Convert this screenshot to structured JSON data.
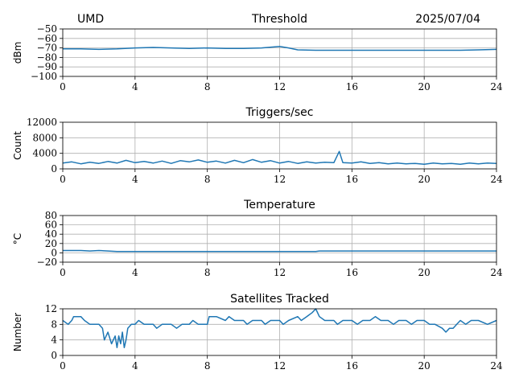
{
  "header": {
    "station": "UMD",
    "date": "2025/07/04"
  },
  "colors": {
    "series": "#1f77b4"
  },
  "chart_data": [
    {
      "type": "line",
      "title": "Threshold",
      "ylabel": "dBm",
      "xlim": [
        0,
        24
      ],
      "xticks": [
        0,
        4,
        8,
        12,
        16,
        20,
        24
      ],
      "ylim": [
        -100,
        -50
      ],
      "yticks": [
        -100,
        -90,
        -80,
        -70,
        -60,
        -50
      ],
      "ytick_labels": [
        "−100",
        "−90",
        "−80",
        "−70",
        "−60",
        "−50"
      ],
      "grid": true,
      "series": [
        {
          "values": [
            [
              0,
              -71
            ],
            [
              1,
              -71
            ],
            [
              2,
              -71.5
            ],
            [
              3,
              -71
            ],
            [
              4,
              -70
            ],
            [
              5,
              -69.5
            ],
            [
              6,
              -70
            ],
            [
              7,
              -70.5
            ],
            [
              8,
              -70
            ],
            [
              9,
              -70.5
            ],
            [
              10,
              -70.5
            ],
            [
              11,
              -70
            ],
            [
              12,
              -68.5
            ],
            [
              12.5,
              -70
            ],
            [
              13,
              -72
            ],
            [
              14,
              -72.5
            ],
            [
              16,
              -72.5
            ],
            [
              18,
              -72.5
            ],
            [
              20,
              -72.5
            ],
            [
              22,
              -72.5
            ],
            [
              23,
              -72
            ],
            [
              24,
              -71.5
            ]
          ]
        }
      ]
    },
    {
      "type": "line",
      "title": "Triggers/sec",
      "ylabel": "Count",
      "xlim": [
        0,
        24
      ],
      "xticks": [
        0,
        4,
        8,
        12,
        16,
        20,
        24
      ],
      "ylim": [
        0,
        12000
      ],
      "yticks": [
        0,
        4000,
        8000,
        12000
      ],
      "ytick_labels": [
        "0",
        "4000",
        "8000",
        "12000"
      ],
      "grid": true,
      "series": [
        {
          "values": [
            [
              0,
              1500
            ],
            [
              0.5,
              1800
            ],
            [
              1,
              1300
            ],
            [
              1.5,
              1700
            ],
            [
              2,
              1400
            ],
            [
              2.5,
              1900
            ],
            [
              3,
              1500
            ],
            [
              3.5,
              2200
            ],
            [
              4,
              1600
            ],
            [
              4.5,
              1900
            ],
            [
              5,
              1500
            ],
            [
              5.5,
              2000
            ],
            [
              6,
              1400
            ],
            [
              6.5,
              2100
            ],
            [
              7,
              1800
            ],
            [
              7.5,
              2300
            ],
            [
              8,
              1700
            ],
            [
              8.5,
              2000
            ],
            [
              9,
              1500
            ],
            [
              9.5,
              2200
            ],
            [
              10,
              1600
            ],
            [
              10.5,
              2400
            ],
            [
              11,
              1700
            ],
            [
              11.5,
              2100
            ],
            [
              12,
              1500
            ],
            [
              12.5,
              1900
            ],
            [
              13,
              1400
            ],
            [
              13.5,
              1800
            ],
            [
              14,
              1500
            ],
            [
              14.5,
              1700
            ],
            [
              15,
              1600
            ],
            [
              15.3,
              4500
            ],
            [
              15.5,
              1600
            ],
            [
              16,
              1500
            ],
            [
              16.5,
              1800
            ],
            [
              17,
              1400
            ],
            [
              17.5,
              1600
            ],
            [
              18,
              1300
            ],
            [
              18.5,
              1500
            ],
            [
              19,
              1300
            ],
            [
              19.5,
              1400
            ],
            [
              20,
              1200
            ],
            [
              20.5,
              1500
            ],
            [
              21,
              1300
            ],
            [
              21.5,
              1400
            ],
            [
              22,
              1200
            ],
            [
              22.5,
              1500
            ],
            [
              23,
              1300
            ],
            [
              23.5,
              1500
            ],
            [
              24,
              1400
            ]
          ]
        }
      ]
    },
    {
      "type": "line",
      "title": "Temperature",
      "ylabel": "°C",
      "xlim": [
        0,
        24
      ],
      "xticks": [
        0,
        4,
        8,
        12,
        16,
        20,
        24
      ],
      "ylim": [
        -20,
        80
      ],
      "yticks": [
        -20,
        0,
        20,
        40,
        60,
        80
      ],
      "ytick_labels": [
        "−20",
        "0",
        "20",
        "40",
        "60",
        "80"
      ],
      "grid": true,
      "series": [
        {
          "values": [
            [
              0,
              5
            ],
            [
              1,
              5
            ],
            [
              1.5,
              4
            ],
            [
              2,
              5
            ],
            [
              2.5,
              4
            ],
            [
              3,
              3
            ],
            [
              6,
              3
            ],
            [
              9,
              3
            ],
            [
              12,
              3
            ],
            [
              14,
              3
            ],
            [
              14.2,
              4
            ],
            [
              16,
              4
            ],
            [
              18,
              4
            ],
            [
              20,
              4
            ],
            [
              22,
              4
            ],
            [
              24,
              4
            ]
          ]
        }
      ]
    },
    {
      "type": "line",
      "title": "Satellites Tracked",
      "ylabel": "Number",
      "xlim": [
        0,
        24
      ],
      "xticks": [
        0,
        4,
        8,
        12,
        16,
        20,
        24
      ],
      "ylim": [
        0,
        12
      ],
      "yticks": [
        0,
        4,
        8,
        12
      ],
      "ytick_labels": [
        "0",
        "4",
        "8",
        "12"
      ],
      "grid": true,
      "series": [
        {
          "values": [
            [
              0,
              9
            ],
            [
              0.3,
              8
            ],
            [
              0.5,
              9
            ],
            [
              0.6,
              10
            ],
            [
              1,
              10
            ],
            [
              1.2,
              9
            ],
            [
              1.5,
              8
            ],
            [
              2,
              8
            ],
            [
              2.2,
              7
            ],
            [
              2.3,
              4
            ],
            [
              2.5,
              6
            ],
            [
              2.7,
              3
            ],
            [
              2.9,
              5
            ],
            [
              3,
              2
            ],
            [
              3.1,
              5
            ],
            [
              3.2,
              3
            ],
            [
              3.3,
              6
            ],
            [
              3.4,
              2
            ],
            [
              3.5,
              4
            ],
            [
              3.6,
              7
            ],
            [
              3.8,
              8
            ],
            [
              4,
              8
            ],
            [
              4.2,
              9
            ],
            [
              4.5,
              8
            ],
            [
              5,
              8
            ],
            [
              5.2,
              7
            ],
            [
              5.5,
              8
            ],
            [
              6,
              8
            ],
            [
              6.3,
              7
            ],
            [
              6.6,
              8
            ],
            [
              7,
              8
            ],
            [
              7.2,
              9
            ],
            [
              7.5,
              8
            ],
            [
              8,
              8
            ],
            [
              8.1,
              10
            ],
            [
              8.5,
              10
            ],
            [
              9,
              9
            ],
            [
              9.2,
              10
            ],
            [
              9.5,
              9
            ],
            [
              10,
              9
            ],
            [
              10.2,
              8
            ],
            [
              10.5,
              9
            ],
            [
              11,
              9
            ],
            [
              11.2,
              8
            ],
            [
              11.5,
              9
            ],
            [
              12,
              9
            ],
            [
              12.2,
              8
            ],
            [
              12.5,
              9
            ],
            [
              13,
              10
            ],
            [
              13.2,
              9
            ],
            [
              13.5,
              10
            ],
            [
              13.8,
              11
            ],
            [
              14,
              12
            ],
            [
              14.2,
              10
            ],
            [
              14.5,
              9
            ],
            [
              15,
              9
            ],
            [
              15.2,
              8
            ],
            [
              15.5,
              9
            ],
            [
              16,
              9
            ],
            [
              16.3,
              8
            ],
            [
              16.6,
              9
            ],
            [
              17,
              9
            ],
            [
              17.3,
              10
            ],
            [
              17.6,
              9
            ],
            [
              18,
              9
            ],
            [
              18.3,
              8
            ],
            [
              18.6,
              9
            ],
            [
              19,
              9
            ],
            [
              19.3,
              8
            ],
            [
              19.6,
              9
            ],
            [
              20,
              9
            ],
            [
              20.3,
              8
            ],
            [
              20.6,
              8
            ],
            [
              21,
              7
            ],
            [
              21.2,
              6
            ],
            [
              21.4,
              7
            ],
            [
              21.6,
              7
            ],
            [
              21.8,
              8
            ],
            [
              22,
              9
            ],
            [
              22.3,
              8
            ],
            [
              22.6,
              9
            ],
            [
              23,
              9
            ],
            [
              23.5,
              8
            ],
            [
              24,
              9
            ]
          ]
        }
      ]
    }
  ]
}
